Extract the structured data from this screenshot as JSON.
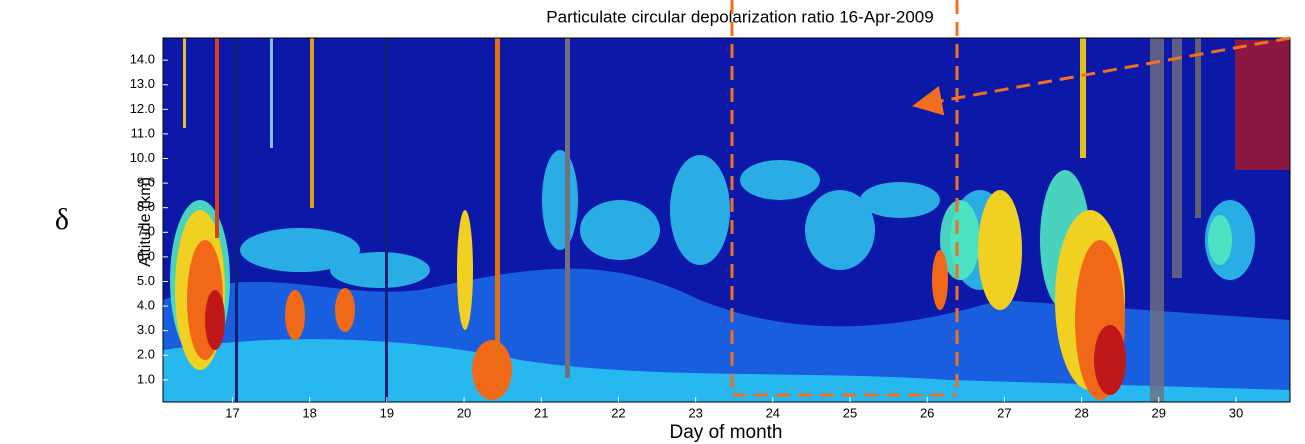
{
  "chart_data": {
    "type": "heatmap",
    "title": "Particulate circular depolarization ratio   16-Apr-2009",
    "x_label": "Day of month",
    "y_label": "Altitude (km)",
    "side_label": "δ",
    "xlim": [
      16.1,
      30.7
    ],
    "xticks": [
      17,
      18,
      19,
      20,
      21,
      22,
      23,
      24,
      25,
      26,
      27,
      28,
      29,
      30
    ],
    "ylim": [
      0.1,
      14.9
    ],
    "yticks": [
      {
        "value": 1,
        "label": "1.0"
      },
      {
        "value": 2,
        "label": "2.0"
      },
      {
        "value": 3,
        "label": "3.0"
      },
      {
        "value": 4,
        "label": "4.0"
      },
      {
        "value": 5,
        "label": "5.0"
      },
      {
        "value": 6,
        "label": "6.0"
      },
      {
        "value": 7,
        "label": "7.0"
      },
      {
        "value": 8,
        "label": "8.0"
      },
      {
        "value": 9,
        "label": "9.0"
      },
      {
        "value": 10,
        "label": "10.0"
      },
      {
        "value": 11,
        "label": "11.0"
      },
      {
        "value": 12,
        "label": "12.0"
      },
      {
        "value": 13,
        "label": "13.0"
      },
      {
        "value": 14,
        "label": "14.0"
      }
    ]
  }
}
